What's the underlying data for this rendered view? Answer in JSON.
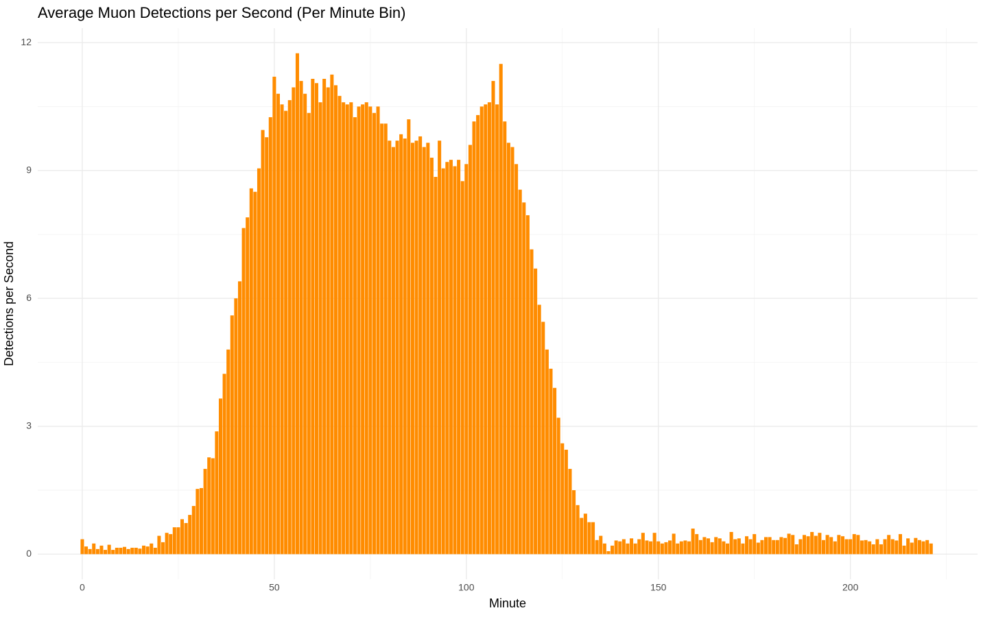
{
  "chart_data": {
    "type": "bar",
    "title": "Average Muon Detections per Second (Per Minute Bin)",
    "x_label": "Minute",
    "y_label": "Detections per Second",
    "color": "#ff8c00",
    "grid": true,
    "xlim": [
      -11.6,
      233.1
    ],
    "xticks": [
      0,
      50,
      100,
      150,
      200
    ],
    "ylim": [
      -0.59,
      12.34
    ],
    "yticks": [
      0,
      3,
      6,
      9,
      12
    ],
    "x": [
      0,
      1,
      2,
      3,
      4,
      5,
      6,
      7,
      8,
      9,
      10,
      11,
      12,
      13,
      14,
      15,
      16,
      17,
      18,
      19,
      20,
      21,
      22,
      23,
      24,
      25,
      26,
      27,
      28,
      29,
      30,
      31,
      32,
      33,
      34,
      35,
      36,
      37,
      38,
      39,
      40,
      41,
      42,
      43,
      44,
      45,
      46,
      47,
      48,
      49,
      50,
      51,
      52,
      53,
      54,
      55,
      56,
      57,
      58,
      59,
      60,
      61,
      62,
      63,
      64,
      65,
      66,
      67,
      68,
      69,
      70,
      71,
      72,
      73,
      74,
      75,
      76,
      77,
      78,
      79,
      80,
      81,
      82,
      83,
      84,
      85,
      86,
      87,
      88,
      89,
      90,
      91,
      92,
      93,
      94,
      95,
      96,
      97,
      98,
      99,
      100,
      101,
      102,
      103,
      104,
      105,
      106,
      107,
      108,
      109,
      110,
      111,
      112,
      113,
      114,
      115,
      116,
      117,
      118,
      119,
      120,
      121,
      122,
      123,
      124,
      125,
      126,
      127,
      128,
      129,
      130,
      131,
      132,
      133,
      134,
      135,
      136,
      137,
      138,
      139,
      140,
      141,
      142,
      143,
      144,
      145,
      146,
      147,
      148,
      149,
      150,
      151,
      152,
      153,
      154,
      155,
      156,
      157,
      158,
      159,
      160,
      161,
      162,
      163,
      164,
      165,
      166,
      167,
      168,
      169,
      170,
      171,
      172,
      173,
      174,
      175,
      176,
      177,
      178,
      179,
      180,
      181,
      182,
      183,
      184,
      185,
      186,
      187,
      188,
      189,
      190,
      191,
      192,
      193,
      194,
      195,
      196,
      197,
      198,
      199,
      200,
      201,
      202,
      203,
      204,
      205,
      206,
      207,
      208,
      209,
      210,
      211,
      212,
      213,
      214,
      215,
      216,
      217,
      218,
      219,
      220,
      221
    ],
    "values": [
      0.35,
      0.18,
      0.12,
      0.25,
      0.12,
      0.2,
      0.1,
      0.22,
      0.1,
      0.15,
      0.15,
      0.17,
      0.12,
      0.15,
      0.15,
      0.13,
      0.2,
      0.18,
      0.25,
      0.15,
      0.43,
      0.28,
      0.5,
      0.47,
      0.63,
      0.63,
      0.82,
      0.73,
      0.92,
      1.13,
      1.53,
      1.55,
      2.0,
      2.27,
      2.25,
      2.88,
      3.65,
      4.23,
      4.8,
      5.6,
      6.0,
      6.4,
      7.65,
      7.9,
      8.58,
      8.5,
      9.05,
      9.95,
      9.78,
      10.25,
      11.2,
      10.8,
      10.55,
      10.4,
      10.65,
      10.95,
      11.75,
      11.1,
      10.8,
      10.35,
      11.15,
      11.05,
      10.6,
      11.15,
      10.95,
      11.25,
      11.0,
      10.75,
      10.6,
      10.55,
      10.6,
      10.25,
      10.5,
      10.55,
      10.6,
      10.5,
      10.35,
      10.5,
      10.1,
      10.1,
      9.7,
      9.55,
      9.7,
      9.85,
      9.75,
      10.2,
      9.65,
      9.7,
      9.8,
      9.55,
      9.65,
      9.3,
      8.85,
      9.7,
      9.05,
      9.2,
      9.25,
      9.1,
      9.25,
      8.75,
      9.15,
      9.6,
      10.15,
      10.3,
      10.5,
      10.55,
      10.6,
      11.1,
      10.55,
      11.5,
      10.15,
      9.65,
      9.55,
      9.15,
      8.55,
      8.25,
      7.95,
      7.15,
      6.7,
      5.85,
      5.45,
      4.8,
      4.35,
      3.9,
      3.2,
      2.6,
      2.45,
      2.0,
      1.5,
      1.15,
      0.85,
      0.95,
      0.75,
      0.75,
      0.33,
      0.43,
      0.25,
      0.07,
      0.2,
      0.32,
      0.3,
      0.35,
      0.25,
      0.37,
      0.25,
      0.35,
      0.5,
      0.32,
      0.3,
      0.5,
      0.3,
      0.25,
      0.28,
      0.32,
      0.48,
      0.25,
      0.3,
      0.32,
      0.3,
      0.6,
      0.47,
      0.33,
      0.4,
      0.37,
      0.28,
      0.4,
      0.37,
      0.3,
      0.25,
      0.52,
      0.35,
      0.37,
      0.25,
      0.42,
      0.35,
      0.47,
      0.27,
      0.33,
      0.4,
      0.4,
      0.33,
      0.33,
      0.4,
      0.38,
      0.48,
      0.45,
      0.23,
      0.35,
      0.45,
      0.42,
      0.52,
      0.43,
      0.5,
      0.33,
      0.45,
      0.4,
      0.3,
      0.45,
      0.42,
      0.35,
      0.35,
      0.47,
      0.45,
      0.32,
      0.33,
      0.3,
      0.23,
      0.35,
      0.23,
      0.35,
      0.45,
      0.35,
      0.32,
      0.47,
      0.2,
      0.37,
      0.27,
      0.38,
      0.33,
      0.3,
      0.33,
      0.25
    ]
  }
}
